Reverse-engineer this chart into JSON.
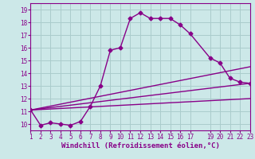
{
  "background_color": "#cce8e8",
  "grid_color": "#aacccc",
  "line_color": "#880088",
  "xlabel": "Windchill (Refroidissement éolien,°C)",
  "xlim": [
    1,
    23
  ],
  "ylim": [
    9.5,
    19.5
  ],
  "xticks": [
    1,
    2,
    3,
    4,
    5,
    6,
    7,
    8,
    9,
    10,
    11,
    12,
    13,
    14,
    15,
    16,
    17,
    19,
    20,
    21,
    22,
    23
  ],
  "yticks": [
    10,
    11,
    12,
    13,
    14,
    15,
    16,
    17,
    18,
    19
  ],
  "main_x": [
    1,
    2,
    3,
    4,
    5,
    6,
    7,
    8,
    9,
    10,
    11,
    12,
    13,
    14,
    15,
    16,
    17,
    19,
    20,
    21,
    22,
    23
  ],
  "main_y": [
    11.1,
    9.9,
    10.1,
    10.0,
    9.9,
    10.2,
    11.4,
    13.0,
    15.8,
    16.0,
    18.3,
    18.75,
    18.3,
    18.3,
    18.3,
    17.8,
    17.1,
    15.2,
    14.8,
    13.6,
    13.3,
    13.2
  ],
  "fan_lines": [
    {
      "x": [
        1,
        23
      ],
      "y": [
        11.1,
        13.2
      ]
    },
    {
      "x": [
        1,
        23
      ],
      "y": [
        11.1,
        14.5
      ]
    },
    {
      "x": [
        1,
        23
      ],
      "y": [
        11.1,
        12.0
      ]
    }
  ],
  "line_width": 1.0,
  "marker_size": 2.5,
  "xlabel_fontsize": 6.5,
  "tick_fontsize": 5.5
}
